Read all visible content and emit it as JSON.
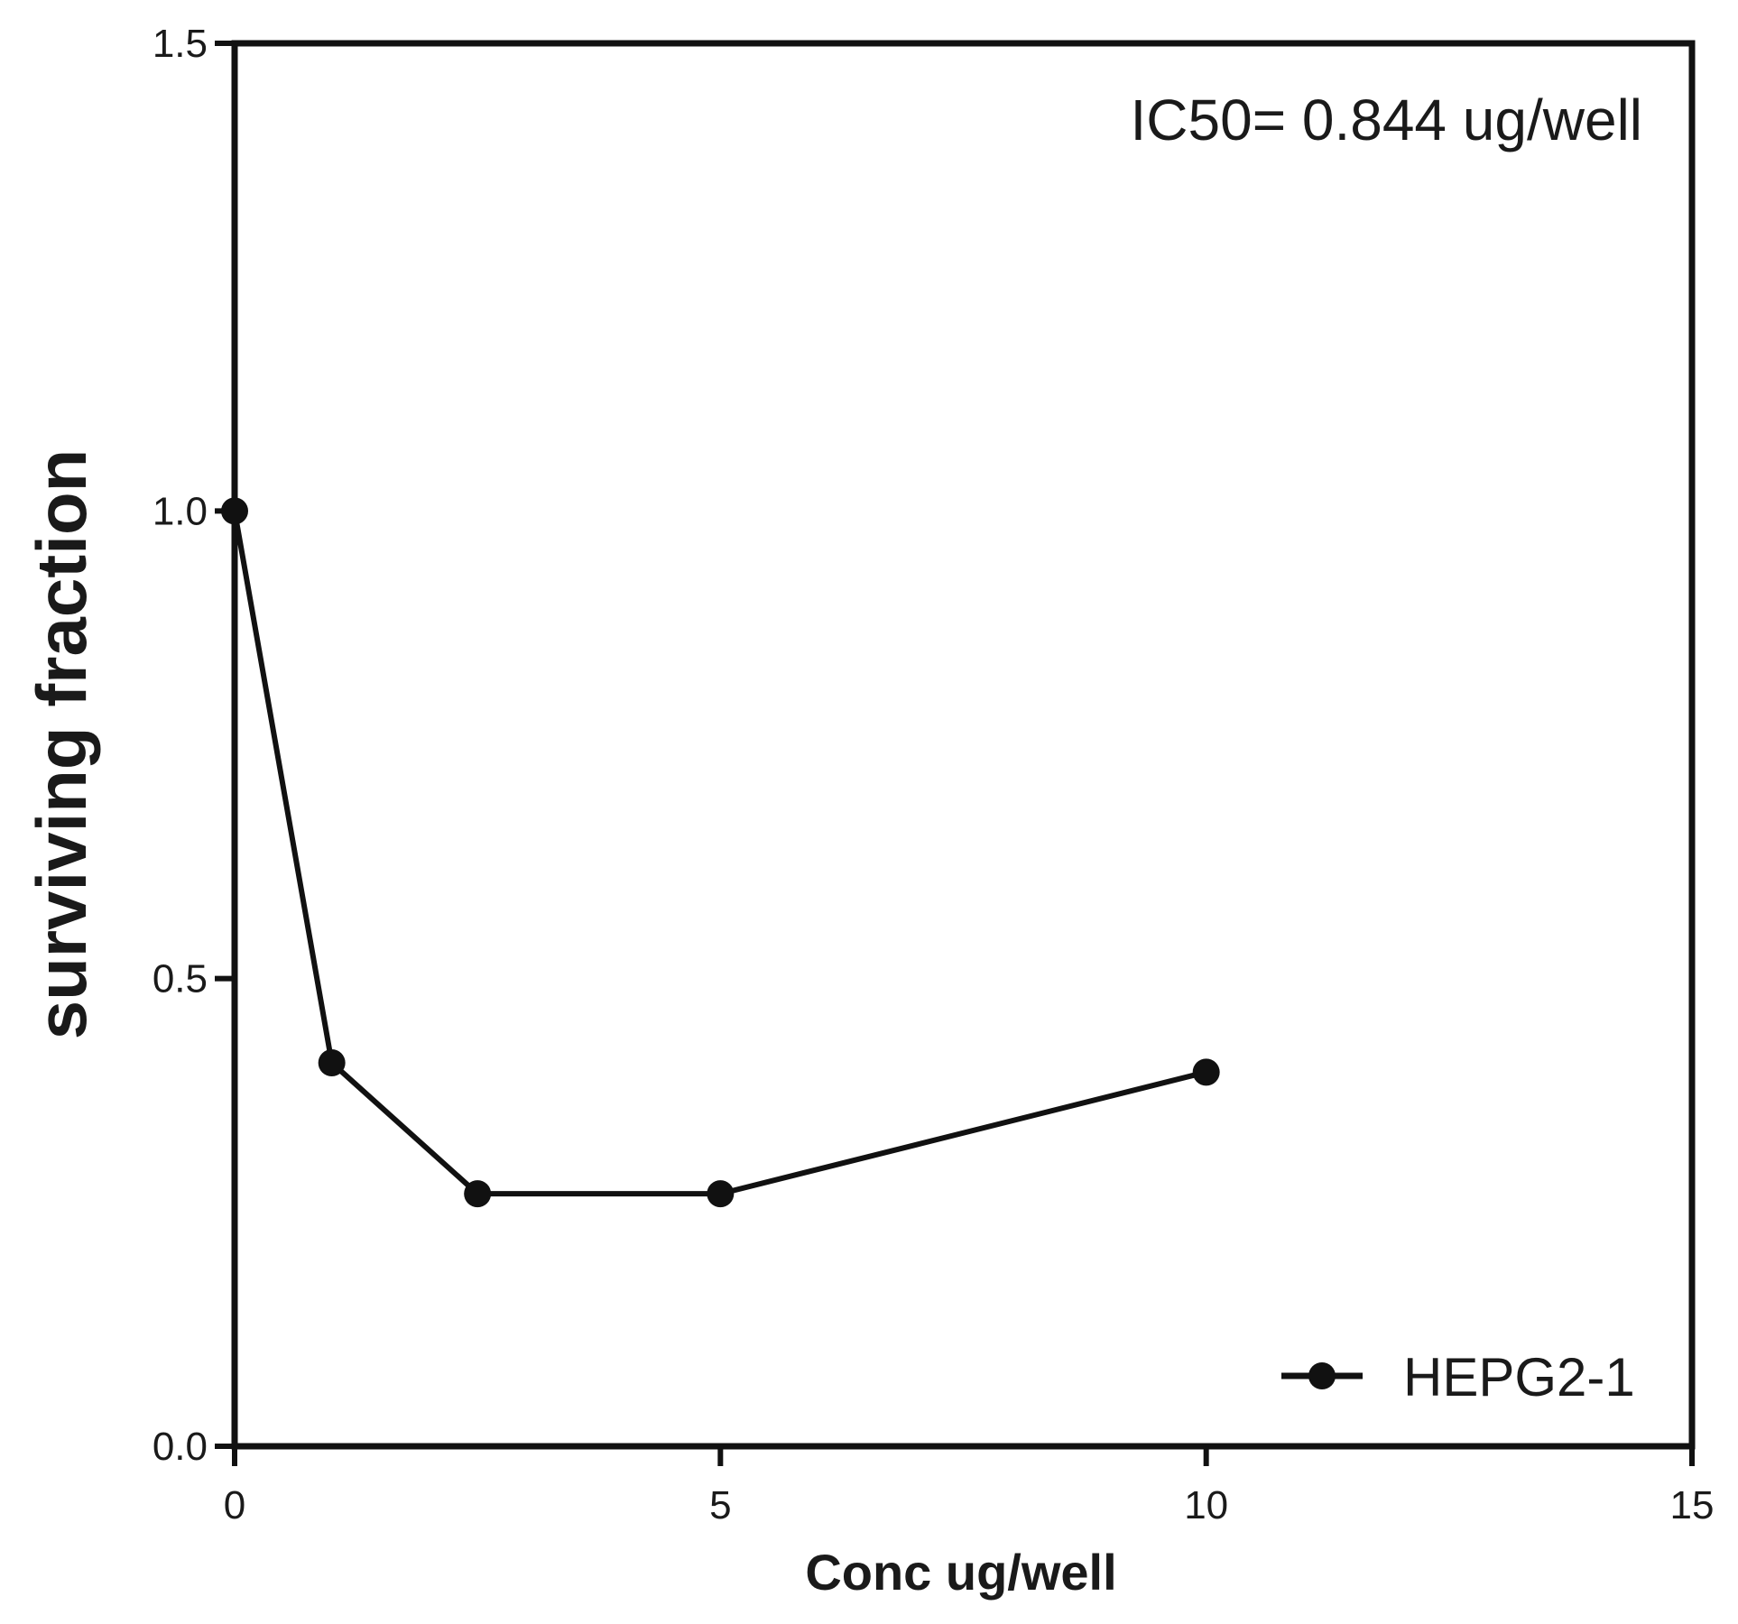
{
  "chart_data": {
    "type": "line",
    "title": "",
    "xlabel": "Conc ug/well",
    "ylabel": "surviving fraction",
    "xlim": [
      0,
      15
    ],
    "ylim": [
      0,
      1.5
    ],
    "x_ticks": [
      0,
      5,
      10,
      15
    ],
    "y_ticks": [
      0,
      0.5,
      1.0,
      1.5
    ],
    "x_tick_labels": [
      "0",
      "5",
      "10",
      "15"
    ],
    "y_tick_labels": [
      "0.0",
      "0.5",
      "1.0",
      "1.5"
    ],
    "grid": false,
    "legend_position": "bottom-right",
    "annotation": "IC50= 0.844 ug/well",
    "series": [
      {
        "name": "HEPG2-1",
        "color": "#111111",
        "marker": "circle",
        "x": [
          0,
          1,
          2.5,
          5,
          10
        ],
        "y": [
          1.0,
          0.41,
          0.27,
          0.27,
          0.4
        ]
      }
    ]
  }
}
